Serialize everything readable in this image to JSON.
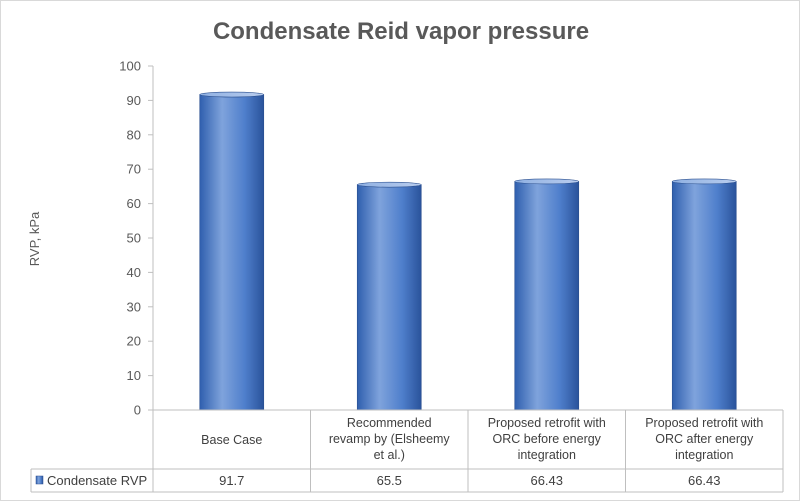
{
  "chart_data": {
    "type": "bar",
    "title": "Condensate Reid vapor pressure",
    "ylabel": "RVP, kPa",
    "xlabel": "",
    "ylim": [
      0,
      100
    ],
    "yticks": [
      0,
      10,
      20,
      30,
      40,
      50,
      60,
      70,
      80,
      90,
      100
    ],
    "grid": false,
    "categories": [
      [
        "Base Case"
      ],
      [
        "Recommended",
        "revamp by (Elsheemy",
        "et al.)"
      ],
      [
        "Proposed retrofit with",
        "ORC before energy",
        "integration"
      ],
      [
        "Proposed retrofit with",
        "ORC after energy",
        "integration"
      ]
    ],
    "series": [
      {
        "name": "Condensate RVP",
        "values": [
          91.7,
          65.5,
          66.43,
          66.43
        ],
        "value_labels": [
          "91.7",
          "65.5",
          "66.43",
          "66.43"
        ]
      }
    ],
    "legend": "data-table",
    "colors": {
      "bar_light": "#7fa3dc",
      "bar_mid": "#4f7fcc",
      "bar_dark": "#2f5597",
      "axis": "#bfbfbf",
      "text": "#595959"
    }
  }
}
